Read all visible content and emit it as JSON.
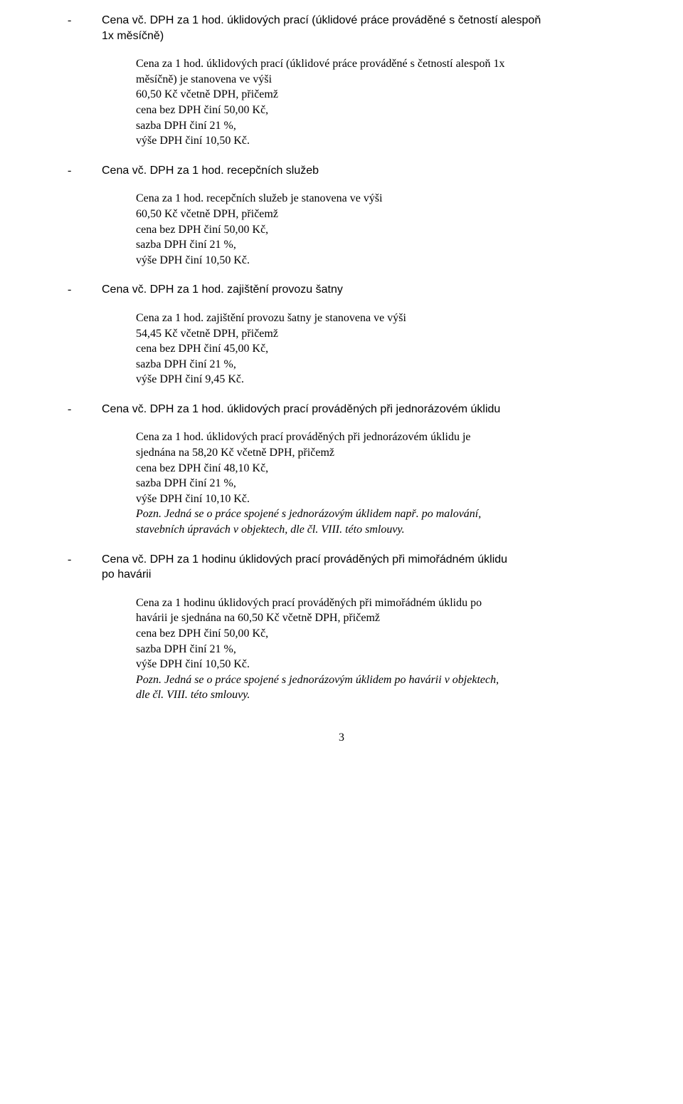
{
  "s1": {
    "dash": "-",
    "head_l1": "Cena vč. DPH za 1 hod. úklidových prací (úklidové práce prováděné s četností alespoň",
    "head_l2": "1x měsíčně)",
    "d1": "Cena za 1 hod. úklidových prací (úklidové práce prováděné s četností alespoň 1x",
    "d2": "měsíčně) je stanovena ve výši",
    "d3": "60,50 Kč včetně DPH, přičemž",
    "d4": "cena bez DPH činí 50,00 Kč,",
    "d5": "sazba DPH činí 21 %,",
    "d6": "výše DPH činí 10,50 Kč."
  },
  "s2": {
    "dash": "-",
    "head": "Cena vč. DPH za 1 hod. recepčních služeb",
    "d1": "Cena za 1 hod. recepčních služeb je stanovena ve výši",
    "d2": "60,50 Kč včetně DPH, přičemž",
    "d3": "cena bez DPH činí 50,00 Kč,",
    "d4": "sazba DPH činí 21 %,",
    "d5": "výše DPH činí 10,50 Kč."
  },
  "s3": {
    "dash": "-",
    "head": "Cena vč. DPH za 1 hod. zajištění provozu šatny",
    "d1": "Cena za 1 hod. zajištění provozu šatny je stanovena ve výši",
    "d2": "54,45 Kč včetně DPH, přičemž",
    "d3": "cena bez DPH činí 45,00 Kč,",
    "d4": "sazba DPH činí 21 %,",
    "d5": "výše DPH činí 9,45 Kč."
  },
  "s4": {
    "dash": "-",
    "head": "Cena vč. DPH za 1 hod. úklidových prací prováděných při jednorázovém úklidu",
    "d1": "Cena za 1 hod. úklidových prací prováděných při jednorázovém úklidu je",
    "d2": "sjednána na 58,20 Kč včetně DPH, přičemž",
    "d3": "cena bez DPH činí 48,10 Kč,",
    "d4": "sazba DPH činí 21 %,",
    "d5": "výše DPH činí 10,10 Kč.",
    "note_l1": "Pozn. Jedná se o práce spojené s jednorázovým úklidem např. po malování,",
    "note_l2": "stavebních úpravách v objektech, dle čl. VIII. této smlouvy."
  },
  "s5": {
    "dash": "-",
    "head_l1": "Cena vč. DPH za 1 hodinu úklidových prací prováděných při mimořádném úklidu",
    "head_l2": "po havárii",
    "d1": "Cena za 1 hodinu úklidových prací prováděných při mimořádném úklidu po",
    "d2": "havárii je sjednána na 60,50 Kč včetně DPH, přičemž",
    "d3": "cena bez DPH činí 50,00 Kč,",
    "d4": "sazba DPH činí 21 %,",
    "d5": "výše DPH činí 10,50 Kč.",
    "note_l1": "Pozn. Jedná se o práce spojené s jednorázovým úklidem po havárii v objektech,",
    "note_l2": "dle čl. VIII. této smlouvy."
  },
  "page": "3"
}
